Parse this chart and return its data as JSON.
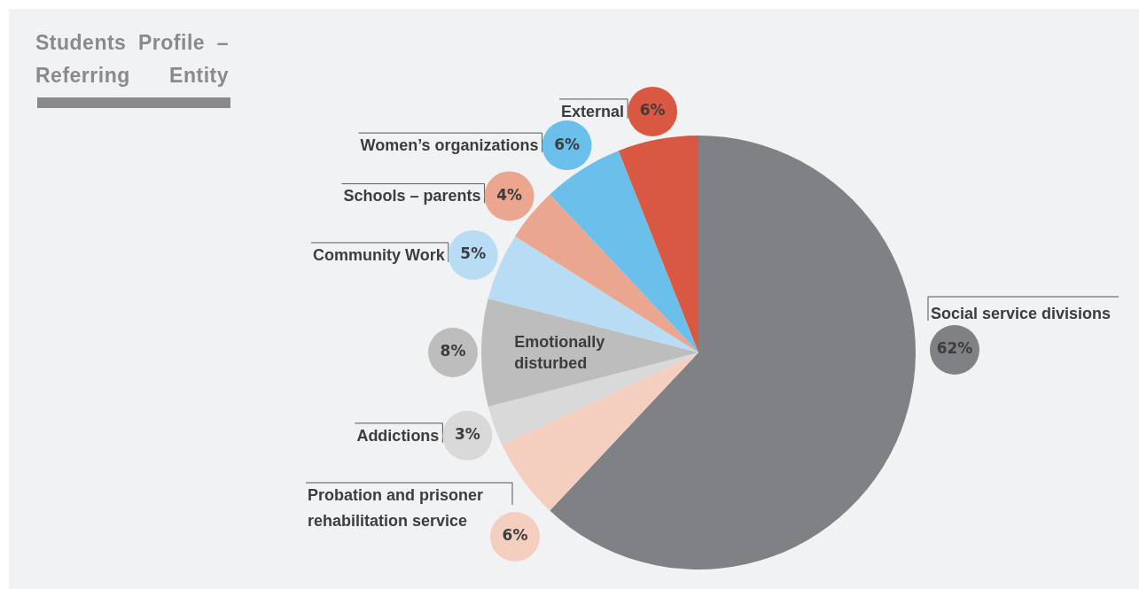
{
  "chart_data": {
    "type": "pie",
    "title": "Students Profile – Referring Entity",
    "categories": [
      "Social service divisions",
      "Probation and prisoner rehabilitation service",
      "Addictions",
      "Emotionally disturbed",
      "Community Work",
      "Schools – parents",
      "Women’s organizations",
      "External"
    ],
    "values": [
      62,
      6,
      3,
      8,
      5,
      4,
      6,
      6
    ],
    "colors": [
      "#808184",
      "#f4cfc0",
      "#d9d9d9",
      "#bdbdbd",
      "#b8dcf3",
      "#eaa68e",
      "#6bbfeb",
      "#d95841"
    ],
    "value_labels": [
      "62%",
      "6%",
      "3%",
      "8%",
      "5%",
      "4%",
      "6%",
      "6%"
    ]
  }
}
